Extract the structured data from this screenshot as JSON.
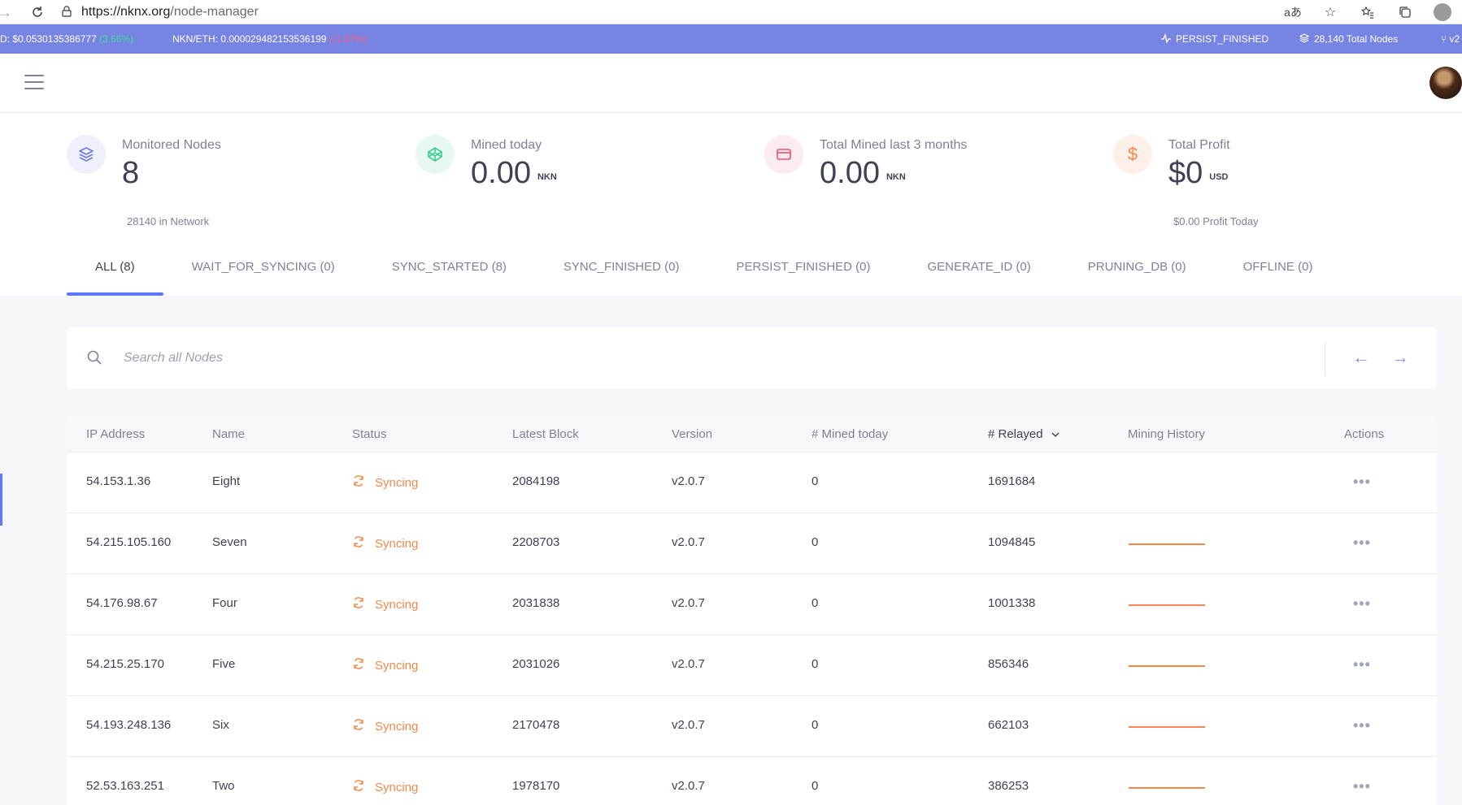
{
  "browser": {
    "url_host": "https://nknx.org",
    "url_path": "/node-manager",
    "translate_icon": "translate-icon",
    "favorite_icon": "star-add-icon"
  },
  "ticker": {
    "usd_text": "D: $0.0530135386777",
    "usd_change": "(3.66%)",
    "eth_text": "NKN/ETH: 0.000029482153536199",
    "eth_change": "(-1.07%)",
    "status": "PERSIST_FINISHED",
    "total_nodes": "28,140 Total Nodes",
    "version_fragment": "v2"
  },
  "stats": {
    "monitored": {
      "label": "Monitored Nodes",
      "value": "8",
      "sub": "28140 in Network",
      "color": "#6f7bd9",
      "bg": "#eef0fb"
    },
    "mined_today": {
      "label": "Mined today",
      "value": "0.00",
      "unit": "NKN",
      "color": "#2ecc8b",
      "bg": "#e6f8ef"
    },
    "mined_3m": {
      "label": "Total Mined last 3 months",
      "value": "0.00",
      "unit": "NKN",
      "color": "#f0506e",
      "bg": "#fdecef"
    },
    "profit": {
      "label": "Total Profit",
      "value": "$0",
      "unit": "USD",
      "sub": "$0.00 Profit Today",
      "color": "#f08a4b",
      "bg": "#fdf0e8"
    }
  },
  "tabs": [
    {
      "label": "ALL (8)",
      "active": true
    },
    {
      "label": "WAIT_FOR_SYNCING (0)"
    },
    {
      "label": "SYNC_STARTED (8)"
    },
    {
      "label": "SYNC_FINISHED (0)"
    },
    {
      "label": "PERSIST_FINISHED (0)"
    },
    {
      "label": "GENERATE_ID (0)"
    },
    {
      "label": "PRUNING_DB (0)"
    },
    {
      "label": "OFFLINE (0)"
    }
  ],
  "search": {
    "placeholder": "Search all Nodes"
  },
  "table": {
    "headers": {
      "ip": "IP Address",
      "name": "Name",
      "status": "Status",
      "block": "Latest Block",
      "version": "Version",
      "mined": "# Mined today",
      "relayed": "# Relayed",
      "history": "Mining History",
      "actions": "Actions"
    },
    "rows": [
      {
        "ip": "54.153.1.36",
        "name": "Eight",
        "status": "Syncing",
        "block": "2084198",
        "version": "v2.0.7",
        "mined": "0",
        "relayed": "1691684",
        "history": false
      },
      {
        "ip": "54.215.105.160",
        "name": "Seven",
        "status": "Syncing",
        "block": "2208703",
        "version": "v2.0.7",
        "mined": "0",
        "relayed": "1094845",
        "history": true
      },
      {
        "ip": "54.176.98.67",
        "name": "Four",
        "status": "Syncing",
        "block": "2031838",
        "version": "v2.0.7",
        "mined": "0",
        "relayed": "1001338",
        "history": true
      },
      {
        "ip": "54.215.25.170",
        "name": "Five",
        "status": "Syncing",
        "block": "2031026",
        "version": "v2.0.7",
        "mined": "0",
        "relayed": "856346",
        "history": true
      },
      {
        "ip": "54.193.248.136",
        "name": "Six",
        "status": "Syncing",
        "block": "2170478",
        "version": "v2.0.7",
        "mined": "0",
        "relayed": "662103",
        "history": true
      },
      {
        "ip": "52.53.163.251",
        "name": "Two",
        "status": "Syncing",
        "block": "1978170",
        "version": "v2.0.7",
        "mined": "0",
        "relayed": "386253",
        "history": true
      }
    ]
  },
  "colors": {
    "accent": "#5d78ff",
    "ticker_bg": "#7784e3",
    "syncing": "#f08a4b"
  }
}
